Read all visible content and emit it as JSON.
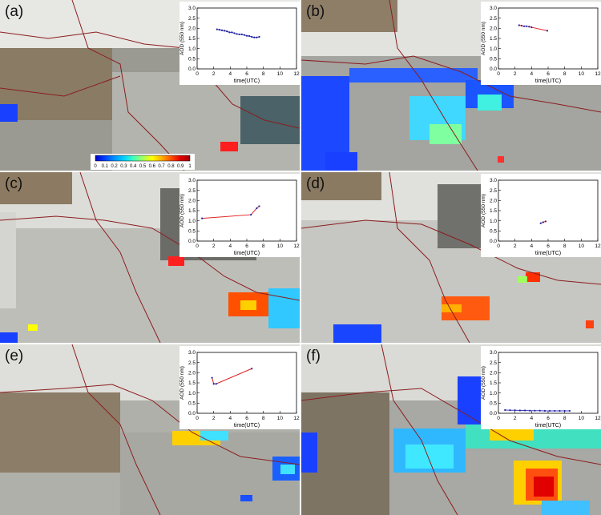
{
  "colorbar": {
    "ticks": [
      "0",
      "0.1",
      "0.2",
      "0.3",
      "0.4",
      "0.5",
      "0.6",
      "0.7",
      "0.8",
      "0.9",
      "1"
    ],
    "colors": [
      "#0000c8",
      "#0040ff",
      "#0090ff",
      "#00d0ff",
      "#40ffc0",
      "#a0ff60",
      "#ffff00",
      "#ffb000",
      "#ff5000",
      "#e00000",
      "#a00000"
    ]
  },
  "chart_data": [
    {
      "panel_label": "(a)",
      "type": "line",
      "xlabel": "time(UTC)",
      "ylabel": "AOD (550 nm)",
      "xlim": [
        0,
        12
      ],
      "ylim": [
        0,
        3.0
      ],
      "xticks": [
        "0",
        "2",
        "4",
        "6",
        "8",
        "10",
        "12"
      ],
      "yticks": [
        "0.0",
        "0.5",
        "1.0",
        "1.5",
        "2.0",
        "2.5",
        "3.0"
      ],
      "series": [
        {
          "x": [
            2.4,
            2.7,
            3.0,
            3.3,
            3.6,
            3.9,
            4.2,
            4.5,
            4.8,
            5.1,
            5.4,
            5.7,
            6.0,
            6.3,
            6.6,
            6.9,
            7.2,
            7.5
          ],
          "y": [
            1.95,
            1.93,
            1.9,
            1.88,
            1.85,
            1.8,
            1.8,
            1.76,
            1.72,
            1.7,
            1.7,
            1.67,
            1.63,
            1.62,
            1.58,
            1.55,
            1.55,
            1.58
          ],
          "color": "#4040c0"
        }
      ]
    },
    {
      "panel_label": "(b)",
      "type": "line",
      "xlabel": "time(UTC)",
      "ylabel": "AOD (550 nm)",
      "xlim": [
        0,
        12
      ],
      "ylim": [
        0,
        3.0
      ],
      "xticks": [
        "0",
        "2",
        "4",
        "6",
        "8",
        "10",
        "12"
      ],
      "yticks": [
        "0.0",
        "0.5",
        "1.0",
        "1.5",
        "2.0",
        "2.5",
        "3.0"
      ],
      "series": [
        {
          "x": [
            2.5,
            2.8,
            3.1,
            3.4,
            3.7,
            4.0,
            5.9
          ],
          "y": [
            2.15,
            2.13,
            2.1,
            2.1,
            2.08,
            2.05,
            1.88
          ],
          "color": "#e02020"
        }
      ]
    },
    {
      "panel_label": "(c)",
      "type": "line",
      "xlabel": "time(UTC)",
      "ylabel": "AOD (550 nm)",
      "xlim": [
        0,
        12
      ],
      "ylim": [
        0,
        3.0
      ],
      "xticks": [
        "0",
        "2",
        "4",
        "6",
        "8",
        "10",
        "12"
      ],
      "yticks": [
        "0.0",
        "0.5",
        "1.0",
        "1.5",
        "2.0",
        "2.5",
        "3.0"
      ],
      "series": [
        {
          "x": [
            0.6,
            6.5,
            7.2,
            7.5
          ],
          "y": [
            1.12,
            1.3,
            1.62,
            1.72
          ],
          "color": "#e02020"
        }
      ]
    },
    {
      "panel_label": "(d)",
      "type": "line",
      "xlabel": "time(UTC)",
      "ylabel": "AOD (550 nm)",
      "xlim": [
        0,
        12
      ],
      "ylim": [
        0,
        3.0
      ],
      "xticks": [
        "0",
        "2",
        "4",
        "6",
        "8",
        "10",
        "12"
      ],
      "yticks": [
        "0.0",
        "0.5",
        "1.0",
        "1.5",
        "2.0",
        "2.5",
        "3.0"
      ],
      "series": [
        {
          "x": [
            5.1,
            5.4,
            5.7
          ],
          "y": [
            0.88,
            0.93,
            0.97
          ],
          "color": "#e02020"
        }
      ]
    },
    {
      "panel_label": "(e)",
      "type": "line",
      "xlabel": "time(UTC)",
      "ylabel": "AOD (550 nm)",
      "xlim": [
        0,
        12
      ],
      "ylim": [
        0,
        3.0
      ],
      "xticks": [
        "0",
        "2",
        "4",
        "6",
        "8",
        "10",
        "12"
      ],
      "yticks": [
        "0.0",
        "0.5",
        "1.0",
        "1.5",
        "2.0",
        "2.5",
        "3.0"
      ],
      "series": [
        {
          "x": [
            1.8,
            2.0,
            2.3,
            6.6
          ],
          "y": [
            1.75,
            1.45,
            1.45,
            2.2
          ],
          "color": "#e02020"
        }
      ]
    },
    {
      "panel_label": "(f)",
      "type": "line",
      "xlabel": "time(UTC)",
      "ylabel": "AOD (550 nm)",
      "xlim": [
        0,
        12
      ],
      "ylim": [
        0,
        3.0
      ],
      "xticks": [
        "0",
        "2",
        "4",
        "6",
        "8",
        "10",
        "12"
      ],
      "yticks": [
        "0.0",
        "0.5",
        "1.0",
        "1.5",
        "2.0",
        "2.5",
        "3.0"
      ],
      "series": [
        {
          "x": [
            0.8,
            1.4,
            2.0,
            2.6,
            3.2,
            3.8,
            4.4,
            5.0,
            5.6,
            6.2,
            6.8,
            7.4,
            8.0,
            8.6
          ],
          "y": [
            0.16,
            0.15,
            0.15,
            0.14,
            0.14,
            0.13,
            0.13,
            0.13,
            0.12,
            0.12,
            0.12,
            0.12,
            0.12,
            0.12
          ],
          "color": "#4040c0"
        }
      ]
    }
  ]
}
